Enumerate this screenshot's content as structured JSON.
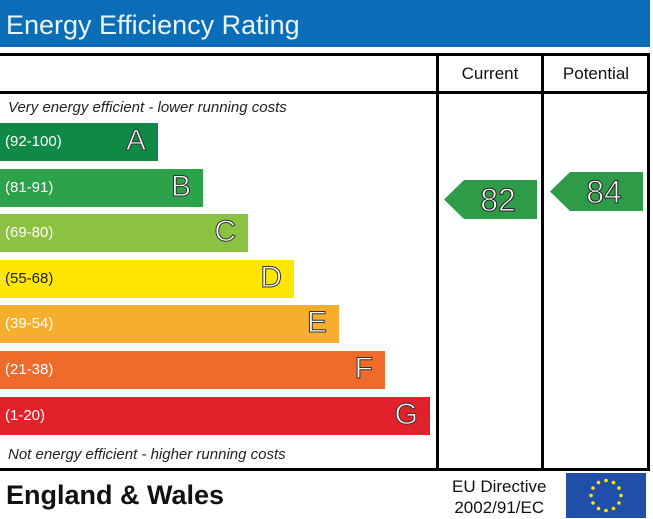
{
  "title": "Energy Efficiency Rating",
  "columns": {
    "current": "Current",
    "potential": "Potential"
  },
  "notes": {
    "top": "Very energy efficient - lower running costs",
    "bottom": "Not energy efficient - higher running costs"
  },
  "footer": {
    "region": "England & Wales",
    "directive_line1": "EU Directive",
    "directive_line2": "2002/91/EC",
    "flag_icon": "eu-flag-icon"
  },
  "chart_data": {
    "type": "bar",
    "title": "Energy Efficiency Rating",
    "categories": [
      "A",
      "B",
      "C",
      "D",
      "E",
      "F",
      "G"
    ],
    "ranges": [
      "(92-100)",
      "(81-91)",
      "(69-80)",
      "(55-68)",
      "(39-54)",
      "(21-38)",
      "(1-20)"
    ],
    "colors": [
      "#0f8a46",
      "#2ca24b",
      "#8cc241",
      "#ffe600",
      "#f6ae2e",
      "#ef6b2b",
      "#e2222b"
    ],
    "current": {
      "value": 82,
      "label": "82",
      "band": "B",
      "color": "#2e9b48"
    },
    "potential": {
      "value": 84,
      "label": "84",
      "band": "B",
      "color": "#2e9b48"
    }
  }
}
